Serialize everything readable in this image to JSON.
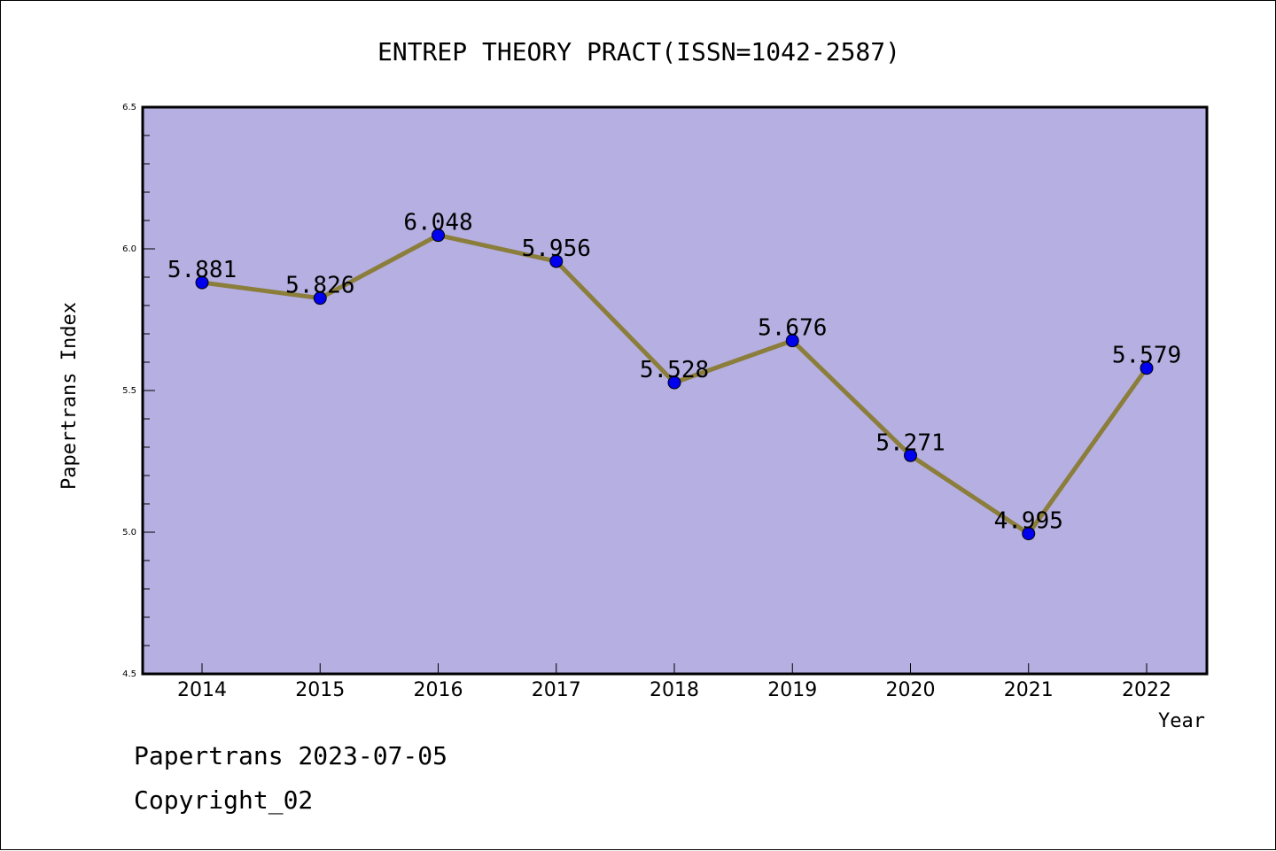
{
  "chart_data": {
    "type": "line",
    "title": "ENTREP THEORY PRACT(ISSN=1042-2587)",
    "xlabel": "Year",
    "ylabel": "Papertrans Index",
    "categories": [
      "2014",
      "2015",
      "2016",
      "2017",
      "2018",
      "2019",
      "2020",
      "2021",
      "2022"
    ],
    "series": [
      {
        "values": [
          5.881,
          5.826,
          6.048,
          5.956,
          5.528,
          5.676,
          5.271,
          4.995,
          5.579
        ],
        "labels": [
          "5.881",
          "5.826",
          "6.048",
          "5.956",
          "5.528",
          "5.676",
          "5.271",
          "4.995",
          "5.579"
        ]
      }
    ],
    "ylim": [
      4.5,
      6.5
    ],
    "yticks": [
      "4.5",
      "5.0",
      "5.5",
      "6.0",
      "6.5"
    ],
    "grid": false,
    "colors": {
      "plot_background": "#b5afe2",
      "line": "#8b7d3a",
      "marker": "#0000ee"
    }
  },
  "footer": {
    "line1": "Papertrans 2023-07-05",
    "line2": "Copyright_02"
  }
}
